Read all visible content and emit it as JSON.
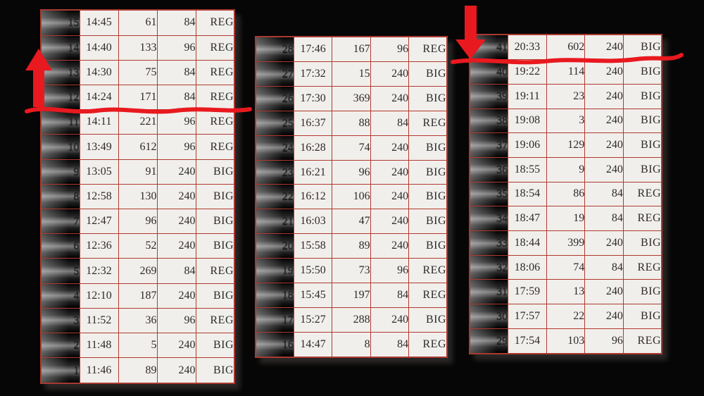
{
  "page": {
    "background_color": "#060606",
    "description": "Three bonus-history data tables on black background with red hand-drawn annotations"
  },
  "colors": {
    "annotation_red": "#e8191f",
    "table_border_red": "#b03a30",
    "cell_background": "#f1efec",
    "dark_cell_text": "#d2cfcf"
  },
  "annotations": {
    "color": "#e8191f",
    "items": [
      {
        "name": "up-arrow",
        "note": "red arrow pointing up, left of left table"
      },
      {
        "name": "wavy-underline-left",
        "note": "red wavy line across left table under row 12"
      },
      {
        "name": "down-arrow",
        "note": "red arrow pointing down at top-left of right table"
      },
      {
        "name": "wavy-underline-right",
        "note": "red wavy line across right table under row 41"
      }
    ]
  },
  "tables": [
    {
      "name": "left",
      "rows": [
        {
          "no": "15",
          "time": "14:45",
          "count": "61",
          "payout": "84",
          "type": "REG"
        },
        {
          "no": "14",
          "time": "14:40",
          "count": "133",
          "payout": "96",
          "type": "REG"
        },
        {
          "no": "13",
          "time": "14:30",
          "count": "75",
          "payout": "84",
          "type": "REG"
        },
        {
          "no": "12",
          "time": "14:24",
          "count": "171",
          "payout": "84",
          "type": "REG"
        },
        {
          "no": "11",
          "time": "14:11",
          "count": "221",
          "payout": "96",
          "type": "REG"
        },
        {
          "no": "10",
          "time": "13:49",
          "count": "612",
          "payout": "96",
          "type": "REG"
        },
        {
          "no": "9",
          "time": "13:05",
          "count": "91",
          "payout": "240",
          "type": "BIG"
        },
        {
          "no": "8",
          "time": "12:58",
          "count": "130",
          "payout": "240",
          "type": "BIG"
        },
        {
          "no": "7",
          "time": "12:47",
          "count": "96",
          "payout": "240",
          "type": "BIG"
        },
        {
          "no": "6",
          "time": "12:36",
          "count": "52",
          "payout": "240",
          "type": "BIG"
        },
        {
          "no": "5",
          "time": "12:32",
          "count": "269",
          "payout": "84",
          "type": "REG"
        },
        {
          "no": "4",
          "time": "12:10",
          "count": "187",
          "payout": "240",
          "type": "BIG"
        },
        {
          "no": "3",
          "time": "11:52",
          "count": "36",
          "payout": "96",
          "type": "REG"
        },
        {
          "no": "2",
          "time": "11:48",
          "count": "5",
          "payout": "240",
          "type": "BIG"
        },
        {
          "no": "1",
          "time": "11:46",
          "count": "89",
          "payout": "240",
          "type": "BIG"
        }
      ]
    },
    {
      "name": "middle",
      "rows": [
        {
          "no": "28",
          "time": "17:46",
          "count": "167",
          "payout": "96",
          "type": "REG"
        },
        {
          "no": "27",
          "time": "17:32",
          "count": "15",
          "payout": "240",
          "type": "BIG"
        },
        {
          "no": "26",
          "time": "17:30",
          "count": "369",
          "payout": "240",
          "type": "BIG"
        },
        {
          "no": "25",
          "time": "16:37",
          "count": "88",
          "payout": "84",
          "type": "REG"
        },
        {
          "no": "24",
          "time": "16:28",
          "count": "74",
          "payout": "240",
          "type": "BIG"
        },
        {
          "no": "23",
          "time": "16:21",
          "count": "96",
          "payout": "240",
          "type": "BIG"
        },
        {
          "no": "22",
          "time": "16:12",
          "count": "106",
          "payout": "240",
          "type": "BIG"
        },
        {
          "no": "21",
          "time": "16:03",
          "count": "47",
          "payout": "240",
          "type": "BIG"
        },
        {
          "no": "20",
          "time": "15:58",
          "count": "89",
          "payout": "240",
          "type": "BIG"
        },
        {
          "no": "19",
          "time": "15:50",
          "count": "73",
          "payout": "96",
          "type": "REG"
        },
        {
          "no": "18",
          "time": "15:45",
          "count": "197",
          "payout": "84",
          "type": "REG"
        },
        {
          "no": "17",
          "time": "15:27",
          "count": "288",
          "payout": "240",
          "type": "BIG"
        },
        {
          "no": "16",
          "time": "14:47",
          "count": "8",
          "payout": "84",
          "type": "REG"
        }
      ]
    },
    {
      "name": "right",
      "rows": [
        {
          "no": "41",
          "time": "20:33",
          "count": "602",
          "payout": "240",
          "type": "BIG"
        },
        {
          "no": "40",
          "time": "19:22",
          "count": "114",
          "payout": "240",
          "type": "BIG"
        },
        {
          "no": "39",
          "time": "19:11",
          "count": "23",
          "payout": "240",
          "type": "BIG"
        },
        {
          "no": "38",
          "time": "19:08",
          "count": "3",
          "payout": "240",
          "type": "BIG"
        },
        {
          "no": "37",
          "time": "19:06",
          "count": "129",
          "payout": "240",
          "type": "BIG"
        },
        {
          "no": "36",
          "time": "18:55",
          "count": "9",
          "payout": "240",
          "type": "BIG"
        },
        {
          "no": "35",
          "time": "18:54",
          "count": "86",
          "payout": "84",
          "type": "REG"
        },
        {
          "no": "34",
          "time": "18:47",
          "count": "19",
          "payout": "84",
          "type": "REG"
        },
        {
          "no": "33",
          "time": "18:44",
          "count": "399",
          "payout": "240",
          "type": "BIG"
        },
        {
          "no": "32",
          "time": "18:06",
          "count": "74",
          "payout": "84",
          "type": "REG"
        },
        {
          "no": "31",
          "time": "17:59",
          "count": "13",
          "payout": "240",
          "type": "BIG"
        },
        {
          "no": "30",
          "time": "17:57",
          "count": "22",
          "payout": "240",
          "type": "BIG"
        },
        {
          "no": "29",
          "time": "17:54",
          "count": "103",
          "payout": "96",
          "type": "REG"
        }
      ]
    }
  ]
}
